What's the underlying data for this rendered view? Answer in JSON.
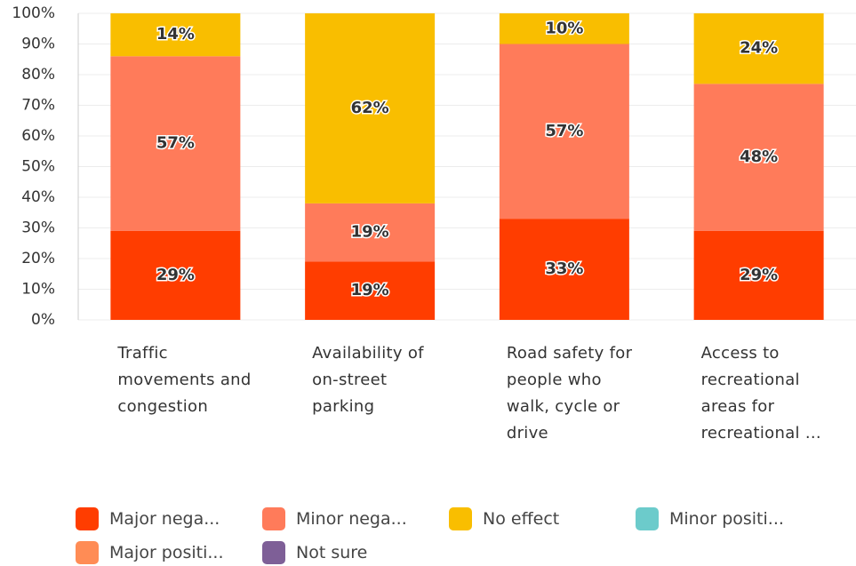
{
  "chart_data": {
    "type": "stacked_bar",
    "categories": [
      "Traffic movements and congestion",
      "Availability of on-street parking",
      "Road safety for people who walk, cycle or drive",
      "Access to recreational areas for recreational ..."
    ],
    "series": [
      {
        "name": "Major nega...",
        "color": "#ff3d00",
        "values": [
          29,
          19,
          33,
          29
        ],
        "value_labels": [
          "29%",
          "19%",
          "33%",
          "29%"
        ]
      },
      {
        "name": "Minor nega...",
        "color": "#ff7b5a",
        "values": [
          57,
          19,
          57,
          48
        ],
        "value_labels": [
          "57%",
          "19%",
          "57%",
          "48%"
        ]
      },
      {
        "name": "No effect",
        "color": "#f9be00",
        "values": [
          14,
          62,
          10,
          24
        ],
        "value_labels": [
          "14%",
          "62%",
          "10%",
          "24%"
        ]
      },
      {
        "name": "Minor positi...",
        "color": "#6ccbcb",
        "values": [
          0,
          0,
          0,
          0
        ]
      },
      {
        "name": "Major positi...",
        "color": "#ff8c55",
        "values": [
          0,
          0,
          0,
          0
        ]
      },
      {
        "name": "Not sure",
        "color": "#7e5f97",
        "values": [
          0,
          0,
          0,
          0
        ]
      }
    ],
    "ylim": [
      0,
      100
    ],
    "yticks": [
      {
        "value": 0,
        "label": "0%"
      },
      {
        "value": 10,
        "label": "10%"
      },
      {
        "value": 20,
        "label": "20%"
      },
      {
        "value": 30,
        "label": "30%"
      },
      {
        "value": 40,
        "label": "40%"
      },
      {
        "value": 50,
        "label": "50%"
      },
      {
        "value": 60,
        "label": "60%"
      },
      {
        "value": 70,
        "label": "70%"
      },
      {
        "value": 80,
        "label": "80%"
      },
      {
        "value": 90,
        "label": "90%"
      },
      {
        "value": 100,
        "label": "100%"
      }
    ],
    "grid": true
  }
}
